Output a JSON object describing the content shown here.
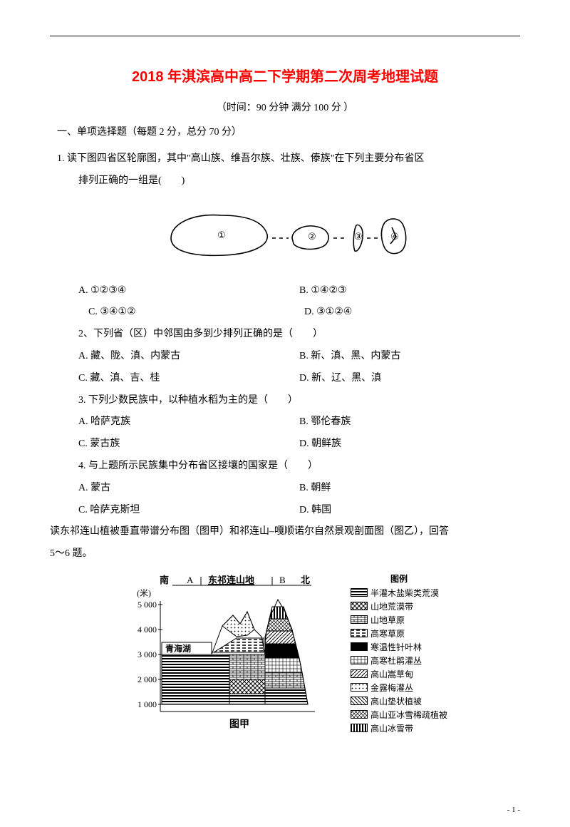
{
  "title": "2018 年淇滨高中高二下学期第二次周考地理试题",
  "meta": "（时间：90 分钟 满分 100 分 ）",
  "section1": "一、单项选择题（每题 2 分，总分 70 分）",
  "q1_stem_a": "1. 读下图四省区轮廓图，其中\"高山族、维吾尔族、壮族、傣族\"在下列主要分布省区",
  "q1_stem_b": "排列正确的一组是(　　)",
  "q1A": "A. ①②③④",
  "q1B": "B. ①④②③",
  "q1C": "C. ③④①②",
  "q1D": "D. ③①②④",
  "q2_stem": "2、下列省（区）中邻国由多到少排列正确的是（　　）",
  "q2A": "A. 藏、陇、滇、内蒙古",
  "q2B": "B. 新、滇、黑、内蒙古",
  "q2C": "C. 藏、滇、吉、桂",
  "q2D": "D. 新、辽、黑、滇",
  "q3_stem": "3. 下列少数民族中，以种植水稻为主的是（　　）",
  "q3A": "A. 哈萨克族",
  "q3B": "B. 鄂伦春族",
  "q3C": "C. 蒙古族",
  "q3D": "D. 朝鲜族",
  "q4_stem": "4. 与上题所示民族集中分布省区接壤的国家是（　　）",
  "q4A": "A. 蒙古",
  "q4B": "B. 朝鲜",
  "q4C": "C. 哈萨克斯坦",
  "q4D": "D. 韩国",
  "passage": "读东祁连山植被垂直带谱分布图（图甲）和祁连山–嘎顺诺尔自然景观剖面图（图乙），回答",
  "passage_b": "5～6 题。",
  "chart": {
    "title_south": "南",
    "title_label_a": "A",
    "title_mid": "东祁连山地",
    "title_label_b": "B",
    "title_north": "北",
    "ylabel": "(米)",
    "yticks": [
      "5 000",
      "4 000",
      "3 000",
      "2 000",
      "1 000"
    ],
    "lake_label": "青海湖",
    "caption": "图甲"
  },
  "legend": {
    "title": "图例",
    "items": [
      {
        "label": "半灌木盐柴类荒漠",
        "fill": "#000",
        "pattern": "hstripe"
      },
      {
        "label": "山地荒漠带",
        "fill": "#fff",
        "pattern": "cross"
      },
      {
        "label": "山地草原",
        "fill": "#fff",
        "pattern": "brick"
      },
      {
        "label": "高寒草原",
        "fill": "#fff",
        "pattern": "dash"
      },
      {
        "label": "寒温性针叶林",
        "fill": "#000",
        "pattern": "solid"
      },
      {
        "label": "高寒杜鹃灌丛",
        "fill": "#fff",
        "pattern": "grid"
      },
      {
        "label": "高山嵩草甸",
        "fill": "#555",
        "pattern": "diag"
      },
      {
        "label": "金露梅灌丛",
        "fill": "#fff",
        "pattern": "dots"
      },
      {
        "label": "高山垫状植被",
        "fill": "#fff",
        "pattern": "diag2"
      },
      {
        "label": "高山亚冰雪稀疏植被",
        "fill": "#888",
        "pattern": "diagcross"
      },
      {
        "label": "高山冰雪带",
        "fill": "#aaa",
        "pattern": "vstripe"
      }
    ]
  },
  "footer": "- 1 -"
}
